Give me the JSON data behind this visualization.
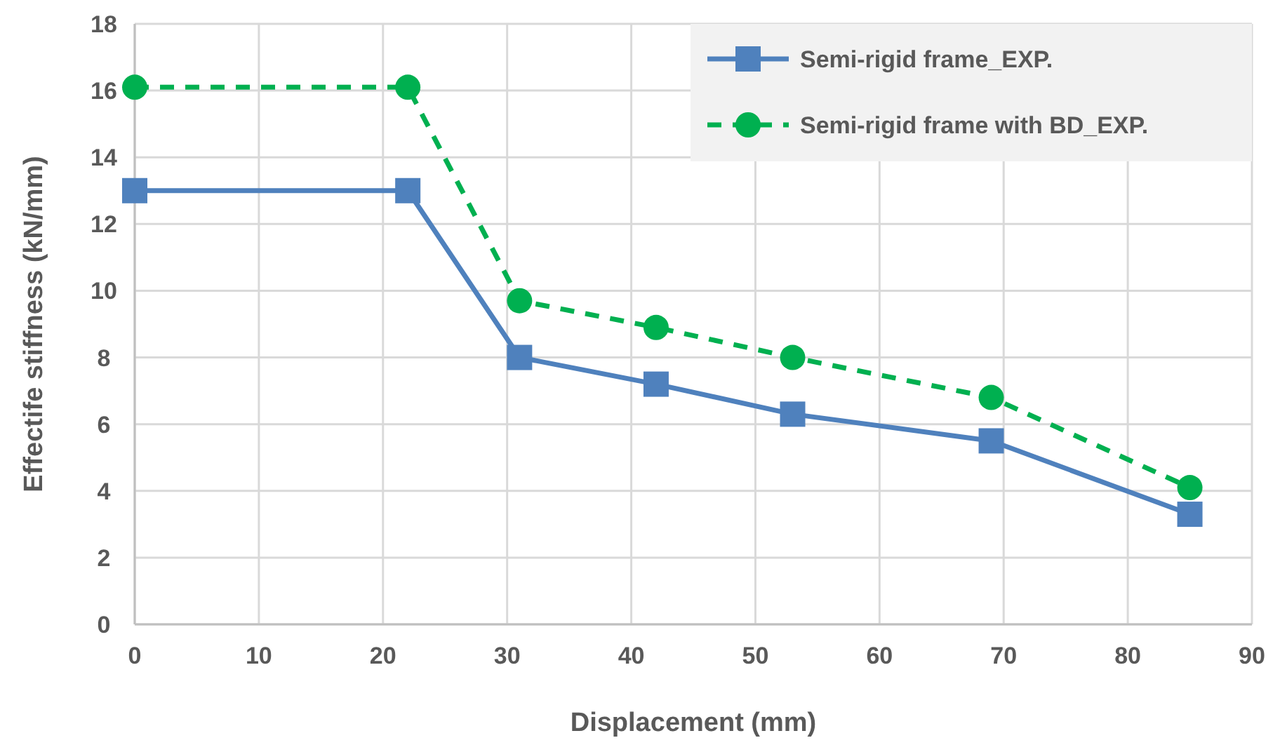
{
  "chart_data": {
    "type": "line",
    "xlabel": "Displacement (mm)",
    "ylabel": "Effectife stiffness (kN/mm)",
    "xlim": [
      0,
      90
    ],
    "xticks": [
      0,
      10,
      20,
      30,
      40,
      50,
      60,
      70,
      80,
      90
    ],
    "ylim": [
      0,
      18
    ],
    "yticks": [
      0,
      2,
      4,
      6,
      8,
      10,
      12,
      14,
      16,
      18
    ],
    "grid": true,
    "legend": "top right",
    "series": [
      {
        "name": "Semi-rigid frame_EXP.",
        "color": "#4f81bd",
        "marker": "square",
        "line_style": "solid",
        "x": [
          0,
          22,
          31,
          42,
          53,
          69,
          85
        ],
        "values": [
          13,
          13,
          8,
          7.2,
          6.3,
          5.5,
          3.3
        ]
      },
      {
        "name": "Semi-rigid frame with BD_EXP.",
        "color": "#00b050",
        "marker": "circle",
        "line_style": "dashed",
        "x": [
          0,
          22,
          31,
          42,
          53,
          69,
          85
        ],
        "values": [
          16.1,
          16.1,
          9.7,
          8.9,
          8,
          6.8,
          4.1
        ]
      }
    ]
  }
}
